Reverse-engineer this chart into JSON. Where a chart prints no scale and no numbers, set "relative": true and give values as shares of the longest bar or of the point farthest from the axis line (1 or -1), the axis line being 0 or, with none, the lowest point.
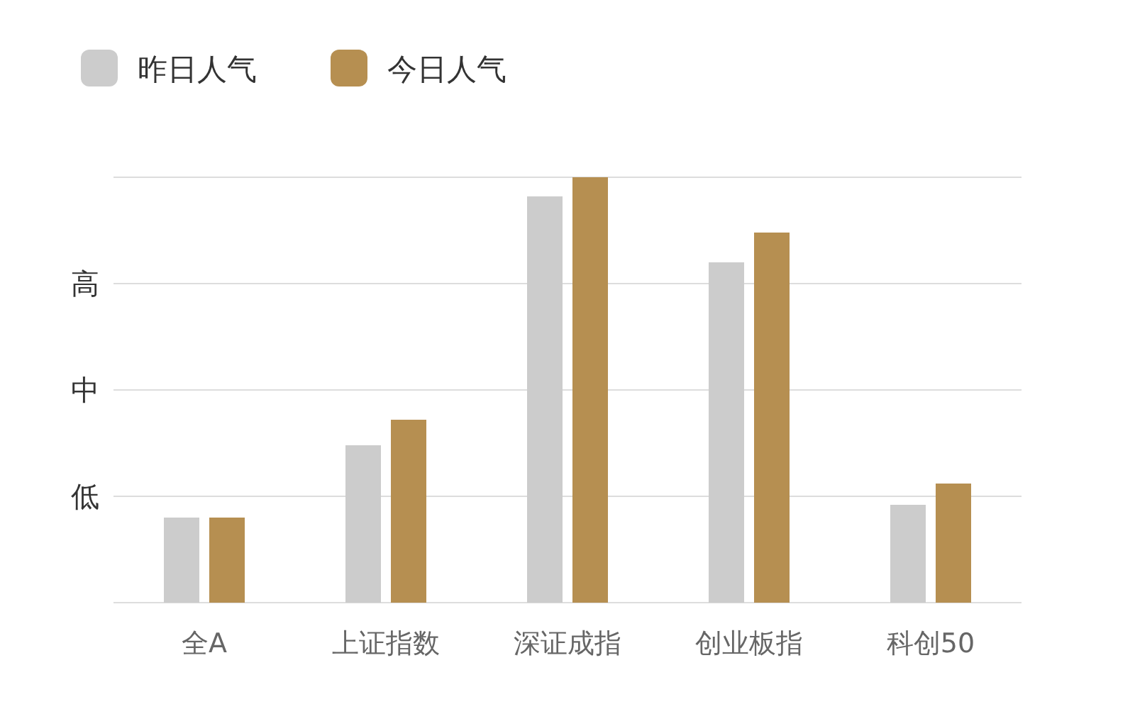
{
  "chart_data": {
    "type": "bar",
    "relative": true,
    "categories": [
      "全A",
      "上证指数",
      "深证成指",
      "创业板指",
      "科创50"
    ],
    "series": [
      {
        "name": "昨日人气",
        "color": "#cccccc",
        "values": [
          0.2,
          0.37,
          0.955,
          0.8,
          0.23
        ]
      },
      {
        "name": "今日人气",
        "color": "#b68f51",
        "values": [
          0.2,
          0.43,
          1,
          0.87,
          0.28
        ]
      }
    ],
    "annotations": [
      "低",
      "中",
      "高"
    ],
    "grid": "y",
    "legend": "top left"
  }
}
